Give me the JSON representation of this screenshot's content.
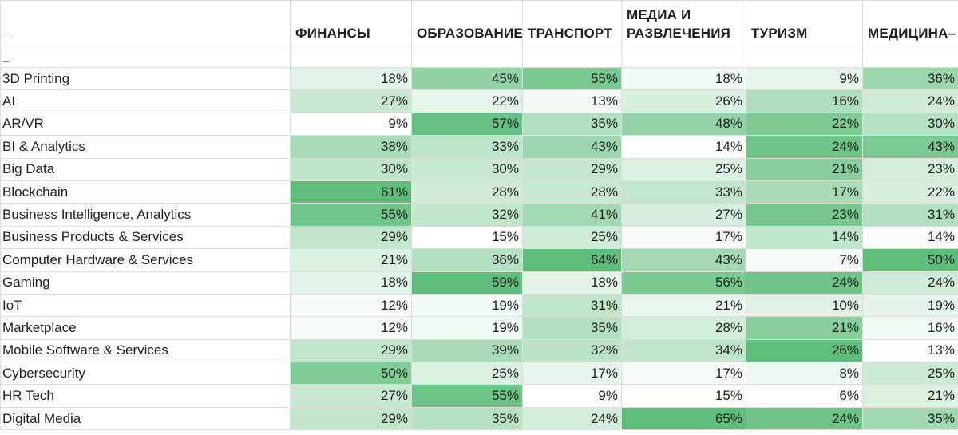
{
  "corner_label": "–",
  "subheader_label": "–",
  "columns": [
    "ФИНАНСЫ",
    "ОБРАЗОВАНИЕ–",
    "ТРАНСПОРТ",
    "МЕДИА И РАЗВЛЕЧЕНИЯ",
    "ТУРИЗМ",
    "МЕДИЦИНА–"
  ],
  "rows": [
    {
      "label": "3D Printing",
      "values": [
        "18%",
        "45%",
        "55%",
        "18%",
        "9%",
        "36%"
      ]
    },
    {
      "label": " AI",
      "values": [
        "27%",
        "22%",
        "13%",
        "26%",
        "16%",
        "24%"
      ]
    },
    {
      "label": "AR/VR",
      "values": [
        "9%",
        "57%",
        "35%",
        "48%",
        "22%",
        "30%"
      ]
    },
    {
      "label": "BI & Analytics",
      "values": [
        "38%",
        "33%",
        "43%",
        "14%",
        "24%",
        "43%"
      ]
    },
    {
      "label": "Big Data",
      "values": [
        "30%",
        "30%",
        "29%",
        "25%",
        "21%",
        "23%"
      ]
    },
    {
      "label": "Blockchain",
      "values": [
        "61%",
        "28%",
        "28%",
        "33%",
        "17%",
        "22%"
      ]
    },
    {
      "label": "Business Intelligence, Analytics",
      "values": [
        "55%",
        "32%",
        "41%",
        "27%",
        "23%",
        "31%"
      ]
    },
    {
      "label": "Business Products & Services",
      "values": [
        "29%",
        "15%",
        "25%",
        "17%",
        "14%",
        "14%"
      ]
    },
    {
      "label": "Computer Hardware & Services",
      "values": [
        "21%",
        "36%",
        "64%",
        "43%",
        "7%",
        "50%"
      ]
    },
    {
      "label": "Gaming",
      "values": [
        "18%",
        "59%",
        "18%",
        "56%",
        "24%",
        "24%"
      ]
    },
    {
      "label": "IoT",
      "values": [
        "12%",
        "19%",
        "31%",
        "21%",
        "10%",
        "19%"
      ]
    },
    {
      "label": "Marketplace",
      "values": [
        "12%",
        "19%",
        "35%",
        "28%",
        "21%",
        "16%"
      ]
    },
    {
      "label": "Mobile Software & Services",
      "values": [
        "29%",
        "39%",
        "32%",
        "34%",
        "26%",
        "13%"
      ]
    },
    {
      "label": " Cybersecurity",
      "values": [
        "50%",
        "25%",
        "17%",
        "17%",
        "8%",
        "25%"
      ]
    },
    {
      "label": " HR Tech",
      "values": [
        "27%",
        "55%",
        "9%",
        "15%",
        "6%",
        "21%"
      ]
    },
    {
      "label": "Digital Media",
      "values": [
        "29%",
        "35%",
        "24%",
        "65%",
        "24%",
        "35%"
      ]
    }
  ],
  "colors": {
    "scale_low": "#ffffff",
    "scale_high": "#5fbd7b"
  }
}
